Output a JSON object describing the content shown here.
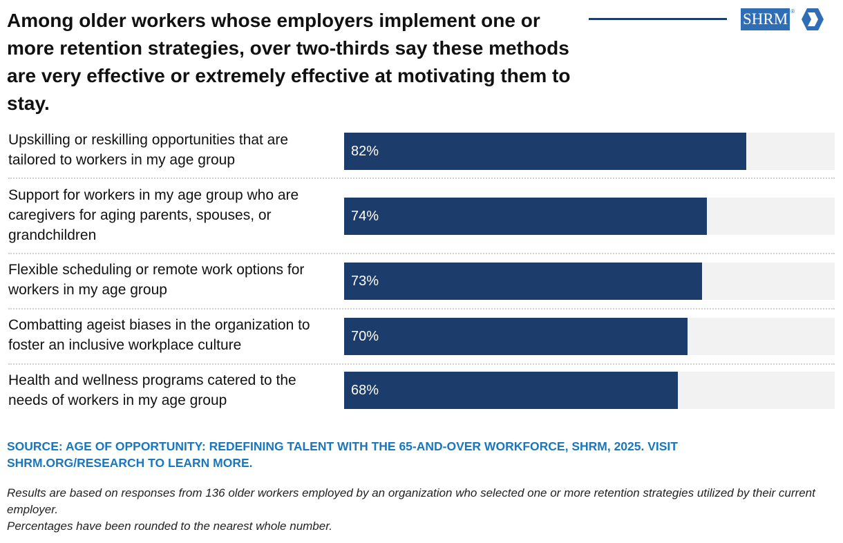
{
  "title": "Among older workers whose employers implement one or more retention strategies, over two-thirds say these methods are very effective or extremely effective at motivating them to stay.",
  "logo": {
    "text": "SHRM",
    "registered": "®"
  },
  "colors": {
    "bar": "#1c3c6c",
    "track": "#f2f2f2",
    "source": "#1a77bd",
    "logo": "#2f6eb5"
  },
  "chart_data": {
    "type": "bar",
    "orientation": "horizontal",
    "title": "Among older workers whose employers implement one or more retention strategies, over two-thirds say these methods are very effective or extremely effective at motivating them to stay.",
    "xlim": [
      0,
      100
    ],
    "categories": [
      "Upskilling or reskilling opportunities that are tailored to workers in my age group",
      "Support for workers in my age group who are caregivers for aging parents, spouses, or grandchildren",
      "Flexible scheduling or remote work options for workers in my age group",
      "Combatting ageist biases in the organization to foster an inclusive workplace culture",
      "Health and wellness programs catered to the needs of workers in my age group"
    ],
    "values": [
      82,
      74,
      73,
      70,
      68
    ],
    "value_labels": [
      "82%",
      "74%",
      "73%",
      "70%",
      "68%"
    ]
  },
  "source": "SOURCE: AGE OF OPPORTUNITY: REDEFINING TALENT WITH THE 65-AND-OVER WORKFORCE, SHRM, 2025. VISIT SHRM.ORG/RESEARCH TO LEARN MORE.",
  "notes": [
    "Results are based on responses from 136 older workers employed by an organization who selected one or more retention strategies utilized by their current employer.",
    "Percentages have been rounded to the nearest whole number."
  ]
}
